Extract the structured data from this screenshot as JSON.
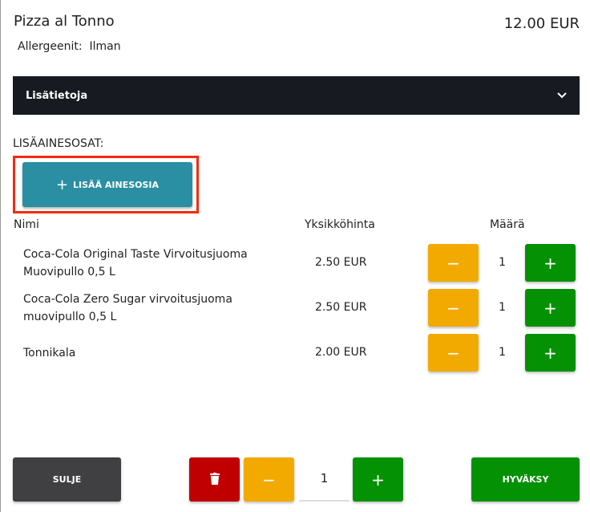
{
  "product": {
    "title": "Pizza al Tonno",
    "price": "12.00 EUR",
    "allergens_label": "Allergeenit:",
    "allergens_value": "Ilman"
  },
  "accordion": {
    "label": "Lisätietoja",
    "icon": "chevron-down-icon"
  },
  "extras": {
    "section_label": "LISÄAINESOSAT:",
    "add_button": "LISÄÄ AINESOSIA",
    "columns": [
      "Nimi",
      "Yksikköhinta",
      "Määrä"
    ],
    "rows": [
      {
        "name": "Coca-Cola Original Taste Virvoitusjuoma Muovipullo 0,5 L",
        "price": "2.50 EUR",
        "qty": "1"
      },
      {
        "name": "Coca-Cola Zero Sugar virvoitusjuoma muovipullo 0,5 L",
        "price": "2.50 EUR",
        "qty": "1"
      },
      {
        "name": "Tonnikala",
        "price": "2.00 EUR",
        "qty": "1"
      }
    ]
  },
  "footer": {
    "close": "SULJE",
    "quantity": "1",
    "accept": "HYVÄKSY"
  },
  "colors": {
    "teal": "#2a8fa3",
    "orange": "#f2aa00",
    "green": "#049104",
    "red": "#c00000",
    "dark": "#404042",
    "highlight": "#f32a10"
  }
}
